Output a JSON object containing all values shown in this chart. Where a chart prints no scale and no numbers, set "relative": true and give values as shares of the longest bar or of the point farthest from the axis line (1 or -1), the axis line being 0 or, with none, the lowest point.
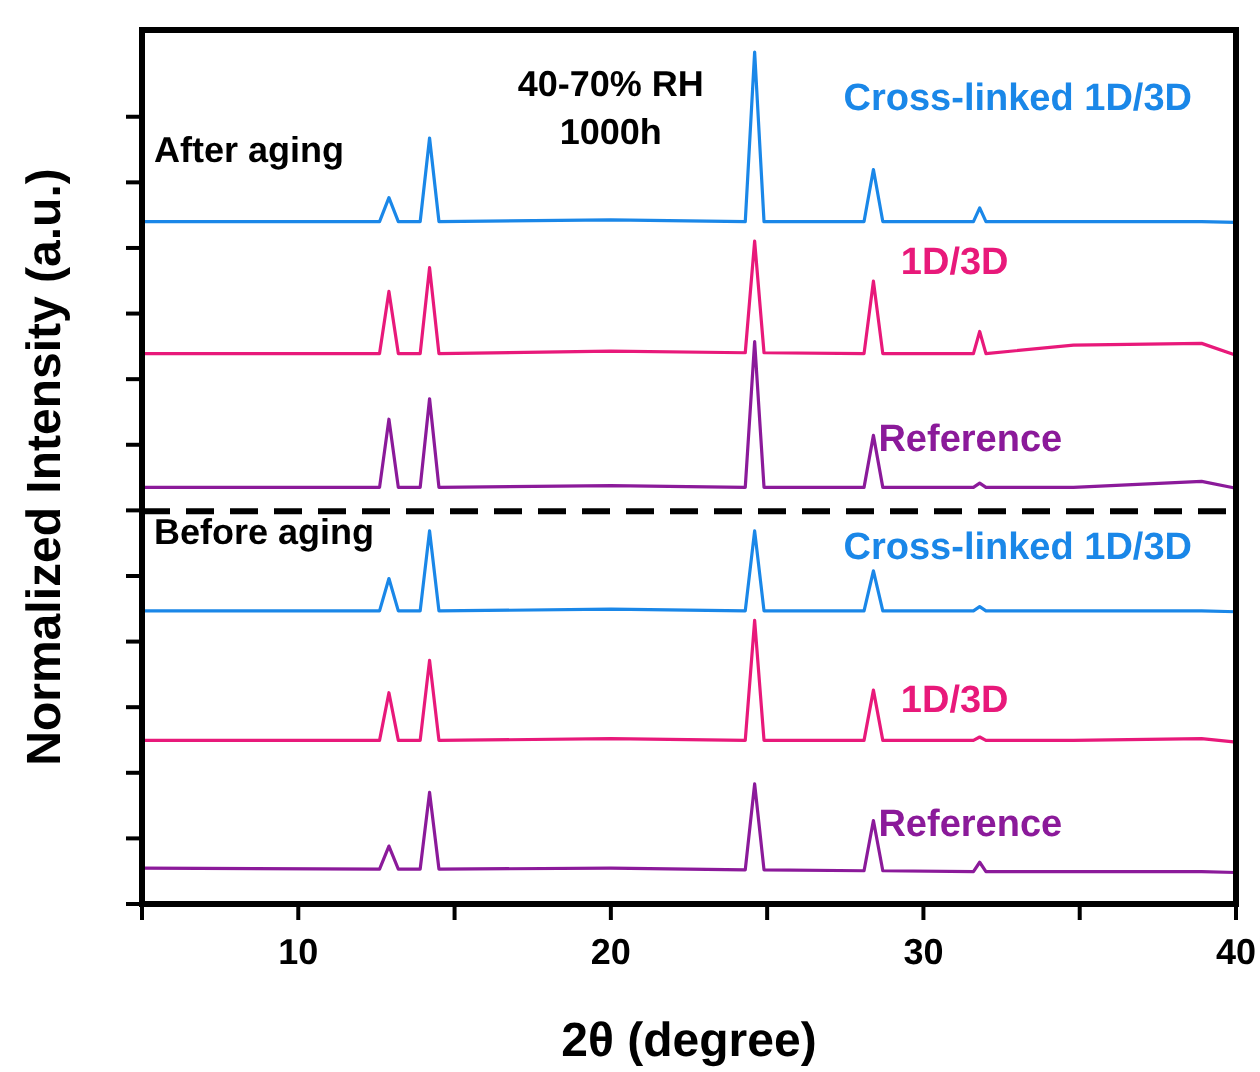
{
  "chart_data": {
    "type": "line",
    "relative": true,
    "xlabel": "2θ (degree)",
    "ylabel": "Normalized Intensity (a.u.)",
    "xlim": [
      5,
      40
    ],
    "xticks": [
      {
        "value": 5,
        "label": null
      },
      10,
      {
        "value": 15,
        "label": null
      },
      20,
      {
        "value": 25,
        "label": null
      },
      30,
      {
        "value": 35,
        "label": null
      },
      40
    ],
    "tick_labels": "x",
    "line_style": "solid",
    "marker": "none",
    "x": [
      5,
      12.6,
      12.9,
      13.2,
      13.9,
      14.2,
      14.5,
      20,
      24.3,
      24.6,
      24.9,
      28.1,
      28.4,
      28.7,
      31.6,
      31.8,
      32.0,
      34.8,
      38.9,
      40
    ],
    "series": [
      {
        "name": "Cross-linked 1D/3D",
        "color": "#1a87e8",
        "values": [
          0.801,
          0.801,
          0.829,
          0.801,
          0.801,
          0.899,
          0.801,
          0.803,
          0.801,
          1.0,
          0.801,
          0.801,
          0.862,
          0.801,
          0.801,
          0.817,
          0.801,
          0.801,
          0.801,
          0.8
        ]
      },
      {
        "name": "1D/3D",
        "color": "#e8197a",
        "values": [
          0.646,
          0.646,
          0.719,
          0.646,
          0.646,
          0.747,
          0.646,
          0.649,
          0.647,
          0.778,
          0.647,
          0.646,
          0.731,
          0.646,
          0.646,
          0.672,
          0.646,
          0.656,
          0.658,
          0.644
        ]
      },
      {
        "name": "Reference",
        "color": "#8b1a9a",
        "values": [
          0.489,
          0.489,
          0.569,
          0.489,
          0.489,
          0.593,
          0.489,
          0.491,
          0.489,
          0.66,
          0.489,
          0.489,
          0.55,
          0.489,
          0.489,
          0.494,
          0.489,
          0.489,
          0.496,
          0.488
        ]
      },
      {
        "name": "Cross-linked 1D/3D",
        "color": "#1a87e8",
        "values": [
          0.344,
          0.344,
          0.382,
          0.344,
          0.344,
          0.438,
          0.344,
          0.346,
          0.344,
          0.438,
          0.344,
          0.344,
          0.391,
          0.344,
          0.344,
          0.349,
          0.344,
          0.344,
          0.344,
          0.343
        ]
      },
      {
        "name": "1D/3D",
        "color": "#e8197a",
        "values": [
          0.192,
          0.192,
          0.248,
          0.192,
          0.192,
          0.286,
          0.192,
          0.194,
          0.192,
          0.333,
          0.192,
          0.192,
          0.251,
          0.192,
          0.192,
          0.196,
          0.192,
          0.192,
          0.194,
          0.19
        ]
      },
      {
        "name": "Reference",
        "color": "#8b1a9a",
        "values": [
          0.042,
          0.041,
          0.068,
          0.041,
          0.041,
          0.131,
          0.041,
          0.042,
          0.04,
          0.141,
          0.04,
          0.039,
          0.098,
          0.039,
          0.038,
          0.049,
          0.038,
          0.038,
          0.038,
          0.037
        ]
      }
    ],
    "ref_lines": [
      {
        "axis": "y",
        "value": 0.461,
        "line_style": "dashed",
        "color": "#000000"
      }
    ],
    "annotations": [
      "After aging",
      "40-70% RH",
      "1000h",
      "Before aging"
    ]
  }
}
